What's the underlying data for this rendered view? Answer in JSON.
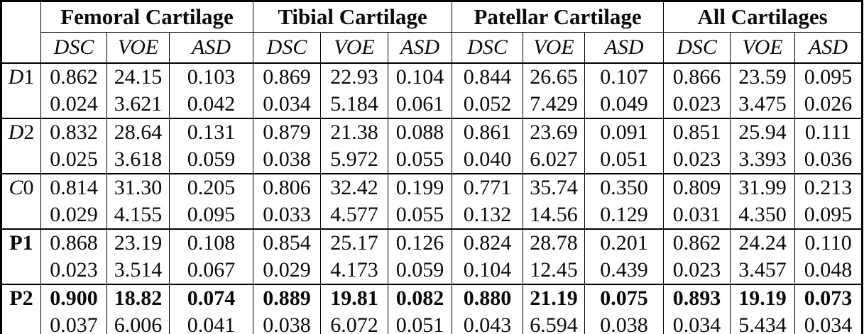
{
  "page": {
    "background": "#ffffff",
    "text_color": "#0a0a0a",
    "border_color": "#000000"
  },
  "table": {
    "corner_label": "",
    "groups": [
      {
        "id": "femoral",
        "label": "Femoral Cartilage"
      },
      {
        "id": "tibial",
        "label": "Tibial Cartilage"
      },
      {
        "id": "patellar",
        "label": "Patellar Cartilage"
      },
      {
        "id": "all",
        "label": "All Cartilages"
      }
    ],
    "metrics": [
      "DSC",
      "VOE",
      "ASD"
    ],
    "rows": [
      {
        "label": "D1",
        "style": "italic",
        "bold_mean": false,
        "mean": [
          "0.862",
          "24.15",
          "0.103",
          "0.869",
          "22.93",
          "0.104",
          "0.844",
          "26.65",
          "0.107",
          "0.866",
          "23.59",
          "0.095"
        ],
        "std": [
          "0.024",
          "3.621",
          "0.042",
          "0.034",
          "5.184",
          "0.061",
          "0.052",
          "7.429",
          "0.049",
          "0.023",
          "3.475",
          "0.026"
        ]
      },
      {
        "label": "D2",
        "style": "italic",
        "bold_mean": false,
        "mean": [
          "0.832",
          "28.64",
          "0.131",
          "0.879",
          "21.38",
          "0.088",
          "0.861",
          "23.69",
          "0.091",
          "0.851",
          "25.94",
          "0.111"
        ],
        "std": [
          "0.025",
          "3.618",
          "0.059",
          "0.038",
          "5.972",
          "0.055",
          "0.040",
          "6.027",
          "0.051",
          "0.023",
          "3.393",
          "0.036"
        ]
      },
      {
        "label": "C0",
        "style": "italic",
        "bold_mean": false,
        "mean": [
          "0.814",
          "31.30",
          "0.205",
          "0.806",
          "32.42",
          "0.199",
          "0.771",
          "35.74",
          "0.350",
          "0.809",
          "31.99",
          "0.213"
        ],
        "std": [
          "0.029",
          "4.155",
          "0.095",
          "0.033",
          "4.577",
          "0.055",
          "0.132",
          "14.56",
          "0.129",
          "0.031",
          "4.350",
          "0.095"
        ]
      },
      {
        "label": "P1",
        "style": "bold",
        "bold_mean": false,
        "mean": [
          "0.868",
          "23.19",
          "0.108",
          "0.854",
          "25.17",
          "0.126",
          "0.824",
          "28.78",
          "0.201",
          "0.862",
          "24.24",
          "0.110"
        ],
        "std": [
          "0.023",
          "3.514",
          "0.067",
          "0.029",
          "4.173",
          "0.059",
          "0.104",
          "12.45",
          "0.439",
          "0.023",
          "3.457",
          "0.048"
        ]
      },
      {
        "label": "P2",
        "style": "bold",
        "bold_mean": true,
        "mean": [
          "0.900",
          "18.82",
          "0.074",
          "0.889",
          "19.81",
          "0.082",
          "0.880",
          "21.19",
          "0.075",
          "0.893",
          "19.19",
          "0.073"
        ],
        "std": [
          "0.037",
          "6.006",
          "0.041",
          "0.038",
          "6.072",
          "0.051",
          "0.043",
          "6.594",
          "0.038",
          "0.034",
          "5.434",
          "0.034"
        ]
      }
    ]
  }
}
